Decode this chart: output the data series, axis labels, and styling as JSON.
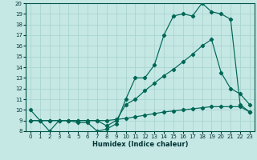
{
  "title": "",
  "xlabel": "Humidex (Indice chaleur)",
  "bg_color": "#c5e8e5",
  "grid_color": "#aad4d0",
  "line_color": "#006655",
  "xlim": [
    -0.5,
    23.5
  ],
  "ylim": [
    8,
    20
  ],
  "xticks": [
    0,
    1,
    2,
    3,
    4,
    5,
    6,
    7,
    8,
    9,
    10,
    11,
    12,
    13,
    14,
    15,
    16,
    17,
    18,
    19,
    20,
    21,
    22,
    23
  ],
  "yticks": [
    8,
    9,
    10,
    11,
    12,
    13,
    14,
    15,
    16,
    17,
    18,
    19,
    20
  ],
  "line1_x": [
    0,
    1,
    2,
    3,
    4,
    5,
    6,
    7,
    8,
    9,
    10,
    11,
    12,
    13,
    14,
    15,
    16,
    17,
    18,
    19,
    20,
    21,
    22,
    23
  ],
  "line1_y": [
    10,
    9,
    8,
    9,
    9,
    8.8,
    8.8,
    8,
    8.2,
    8.7,
    11,
    13,
    13,
    14.2,
    17,
    18.8,
    19,
    18.8,
    20,
    19.2,
    19,
    18.5,
    10.5,
    9.8
  ],
  "line2_x": [
    0,
    1,
    2,
    3,
    4,
    5,
    6,
    7,
    8,
    9,
    10,
    11,
    12,
    13,
    14,
    15,
    16,
    17,
    18,
    19,
    20,
    21,
    22,
    23
  ],
  "line2_y": [
    9.0,
    9.0,
    9.0,
    9.0,
    9.0,
    9.0,
    9.0,
    9.0,
    8.5,
    9.0,
    10.5,
    11.0,
    11.8,
    12.5,
    13.2,
    13.8,
    14.5,
    15.2,
    16.0,
    16.6,
    13.5,
    12.0,
    11.5,
    10.5
  ],
  "line3_x": [
    0,
    1,
    2,
    3,
    4,
    5,
    6,
    7,
    8,
    9,
    10,
    11,
    12,
    13,
    14,
    15,
    16,
    17,
    18,
    19,
    20,
    21,
    22,
    23
  ],
  "line3_y": [
    9.0,
    9.0,
    9.0,
    9.0,
    9.0,
    9.0,
    9.0,
    9.0,
    9.0,
    9.1,
    9.2,
    9.35,
    9.5,
    9.65,
    9.8,
    9.9,
    10.0,
    10.1,
    10.2,
    10.3,
    10.3,
    10.3,
    10.3,
    9.8
  ]
}
